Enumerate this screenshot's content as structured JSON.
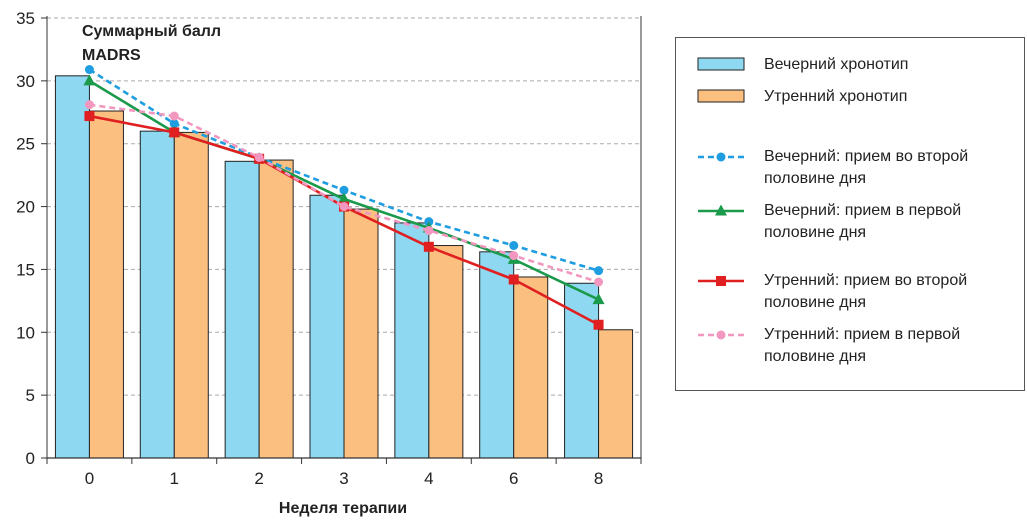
{
  "chart_data": {
    "type": "bar",
    "ylabel_lines": [
      "Суммарный балл",
      "MADRS"
    ],
    "xlabel": "Неделя терапии",
    "categories": [
      "0",
      "1",
      "2",
      "3",
      "4",
      "6",
      "8"
    ],
    "ylim": [
      0,
      35
    ],
    "yticks": [
      "0",
      "5",
      "10",
      "15",
      "20",
      "25",
      "30",
      "35"
    ],
    "grid": true,
    "legend_position": "right",
    "bar_series": [
      {
        "name": "Вечерний хронотип",
        "color": "#8fd8f2",
        "values": [
          30.4,
          26.0,
          23.6,
          20.9,
          18.7,
          16.4,
          13.9
        ]
      },
      {
        "name": "Утренний хронотип",
        "color": "#fbbf80",
        "values": [
          27.6,
          25.9,
          23.7,
          19.8,
          16.9,
          14.4,
          10.2
        ]
      }
    ],
    "line_series": [
      {
        "name": "Вечерний: прием во второй половине дня",
        "color": "#1e9ee0",
        "dash": "6,4",
        "marker": "circle",
        "values": [
          30.9,
          26.6,
          23.9,
          21.3,
          18.8,
          16.9,
          14.9
        ]
      },
      {
        "name": "Вечерний: прием в первой половине дня",
        "color": "#1a9a4a",
        "dash": "",
        "marker": "triangle",
        "values": [
          30.0,
          25.9,
          23.8,
          20.6,
          18.3,
          15.8,
          12.6
        ]
      },
      {
        "name": "Утренний: прием во второй половине дня",
        "color": "#e02020",
        "dash": "",
        "marker": "square",
        "values": [
          27.2,
          25.9,
          23.8,
          20.0,
          16.8,
          14.2,
          10.6
        ]
      },
      {
        "name": "Утренний: прием в первой половине дня",
        "color": "#f298c0",
        "dash": "6,4",
        "marker": "circle",
        "values": [
          28.1,
          27.2,
          23.9,
          20.0,
          18.1,
          16.1,
          14.0
        ]
      }
    ]
  }
}
